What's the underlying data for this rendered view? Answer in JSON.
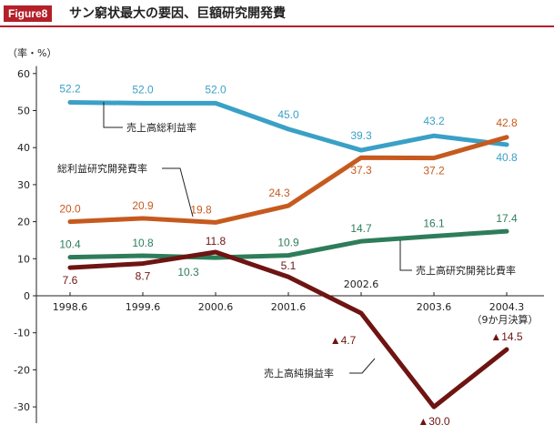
{
  "figure": {
    "badge": "Figure8",
    "title": "サン窮状最大の要因、巨額研究開発費"
  },
  "chart_data": {
    "type": "line",
    "y_unit_label": "（率・%）",
    "ylim": [
      -35,
      62
    ],
    "yticks": [
      60,
      50,
      40,
      30,
      20,
      10,
      0,
      -10,
      -20,
      -30
    ],
    "x_upper_ticks": [
      "1998.6",
      "1999.6",
      "2000.6",
      "2001.6",
      "2003.6",
      "2004.3"
    ],
    "x_upper_ticks_sub": [
      "",
      "",
      "",
      "",
      "",
      "（9か月決算）"
    ],
    "x_lower_tick": "2002.6",
    "categories": [
      "1998.6",
      "1999.6",
      "2000.6",
      "2001.6",
      "2002.6",
      "2003.6",
      "2004.3"
    ],
    "grid": false,
    "series": [
      {
        "name": "売上高総利益率",
        "color": "#3aa0c6",
        "values": [
          52.2,
          52.0,
          52.0,
          45.0,
          39.3,
          43.2,
          40.8
        ],
        "labels": [
          "52.2",
          "52.0",
          "52.0",
          "45.0",
          "39.3",
          "43.2",
          "40.8"
        ]
      },
      {
        "name": "総利益研究開発費率",
        "color": "#c65a1e",
        "values": [
          20.0,
          20.9,
          19.8,
          24.3,
          37.3,
          37.2,
          42.8
        ],
        "labels": [
          "20.0",
          "20.9",
          "19.8",
          "24.3",
          "37.3",
          "37.2",
          "42.8"
        ]
      },
      {
        "name": "売上高研究開発比費率",
        "color": "#2e7d5a",
        "values": [
          10.4,
          10.8,
          10.3,
          10.9,
          14.7,
          16.1,
          17.4
        ],
        "labels": [
          "10.4",
          "10.8",
          "10.3",
          "10.9",
          "14.7",
          "16.1",
          "17.4"
        ]
      },
      {
        "name": "売上高純損益率",
        "color": "#6e1412",
        "values": [
          7.6,
          8.7,
          11.8,
          5.1,
          -4.7,
          -30.0,
          -14.5
        ],
        "labels": [
          "7.6",
          "8.7",
          "11.8",
          "5.1",
          "▲4.7",
          "▲30.0",
          "▲14.5"
        ]
      }
    ]
  }
}
